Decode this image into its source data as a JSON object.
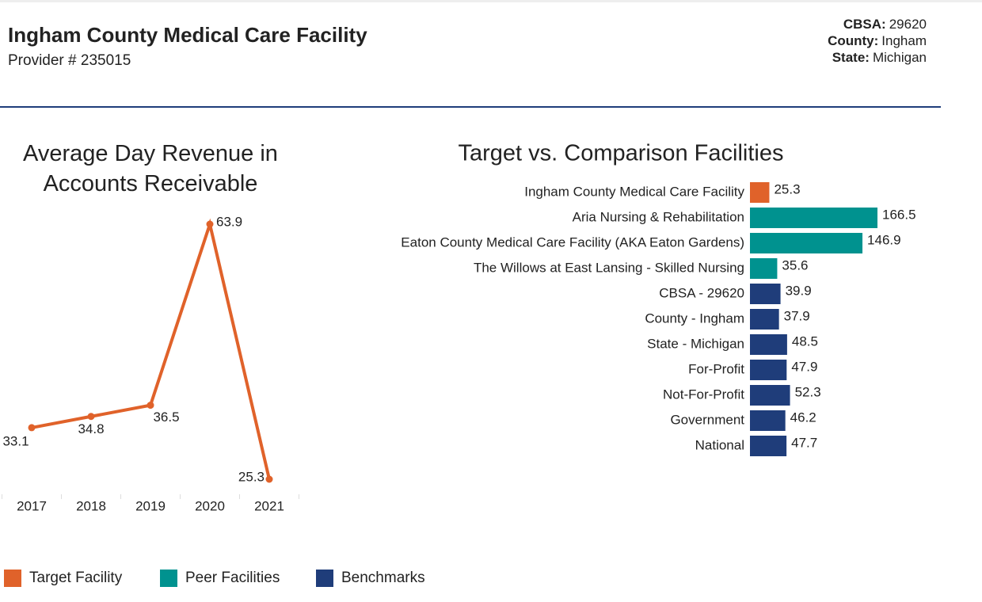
{
  "header": {
    "title": "Ingham County Medical Care Facility",
    "provider": "Provider # 235015",
    "info": [
      {
        "label": "CBSA:",
        "value": "29620"
      },
      {
        "label": "County:",
        "value": "Ingham"
      },
      {
        "label": "State:",
        "value": "Michigan"
      }
    ]
  },
  "chart_data": [
    {
      "type": "line",
      "title": "Average Day Revenue in Accounts Receivable",
      "categories": [
        "2017",
        "2018",
        "2019",
        "2020",
        "2021"
      ],
      "values": [
        33.1,
        34.8,
        36.5,
        63.9,
        25.3
      ],
      "color": "#e0622a"
    },
    {
      "type": "hbar",
      "title": "Target vs. Comparison Facilities",
      "categories": [
        "Ingham County Medical Care Facility",
        "Aria Nursing & Rehabilitation",
        "Eaton County Medical Care Facility (AKA Eaton Gardens)",
        "The Willows at East Lansing - Skilled Nursing",
        "CBSA - 29620",
        "County - Ingham",
        "State - Michigan",
        "For-Profit",
        "Not-For-Profit",
        "Government",
        "National"
      ],
      "values": [
        25.3,
        166.5,
        146.9,
        35.6,
        39.9,
        37.9,
        48.5,
        47.9,
        52.3,
        46.2,
        47.7
      ],
      "colors": [
        "#e0622a",
        "#00928f",
        "#00928f",
        "#00928f",
        "#1f3d7a",
        "#1f3d7a",
        "#1f3d7a",
        "#1f3d7a",
        "#1f3d7a",
        "#1f3d7a",
        "#1f3d7a"
      ]
    }
  ],
  "legend": [
    {
      "name": "Target Facility",
      "color": "#e0622a"
    },
    {
      "name": "Peer Facilities",
      "color": "#00928f"
    },
    {
      "name": "Benchmarks",
      "color": "#1f3d7a"
    }
  ]
}
